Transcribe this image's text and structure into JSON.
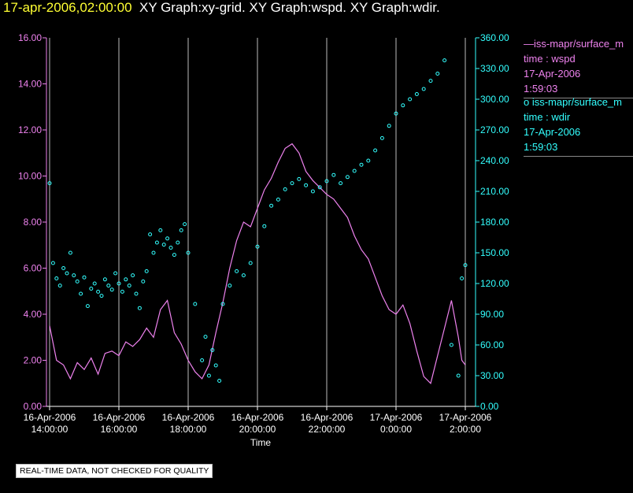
{
  "header": {
    "timestamp": "17-apr-2006,02:00:00",
    "graphs": "XY Graph:xy-grid.  XY Graph:wspd.  XY Graph:wdir."
  },
  "legend": [
    {
      "line1": "—iss-mapr/surface_m",
      "line2": "time : wspd",
      "line3": "17-Apr-2006",
      "line4": "1:59:03",
      "color": "#ee82ee"
    },
    {
      "line1": "o  iss-mapr/surface_m",
      "line2": "time : wdir",
      "line3": "17-Apr-2006",
      "line4": "1:59:03",
      "color": "#33ffff"
    }
  ],
  "footer": {
    "disclaimer": "REAL-TIME DATA, NOT CHECKED FOR QUALITY"
  },
  "chart_data": {
    "type": "line+scatter",
    "title": "",
    "xlabel": "Time",
    "x_range_hours": [
      14.0,
      26.0
    ],
    "x_ticks": [
      {
        "hour": 14,
        "date": "16-Apr-2006",
        "time": "14:00:00"
      },
      {
        "hour": 16,
        "date": "16-Apr-2006",
        "time": "16:00:00"
      },
      {
        "hour": 18,
        "date": "16-Apr-2006",
        "time": "18:00:00"
      },
      {
        "hour": 20,
        "date": "16-Apr-2006",
        "time": "20:00:00"
      },
      {
        "hour": 22,
        "date": "16-Apr-2006",
        "time": "22:00:00"
      },
      {
        "hour": 24,
        "date": "17-Apr-2006",
        "time": "0:00:00"
      },
      {
        "hour": 26,
        "date": "17-Apr-2006",
        "time": "2:00:00"
      }
    ],
    "y_left": {
      "label": "wspd",
      "range": [
        0,
        16
      ],
      "ticks": [
        "0.00",
        "2.00",
        "4.00",
        "6.00",
        "8.00",
        "10.00",
        "12.00",
        "14.00",
        "16.00"
      ],
      "color": "#ee82ee"
    },
    "y_right": {
      "label": "wdir",
      "range": [
        0,
        360
      ],
      "ticks": [
        "0.00",
        "30.00",
        "60.00",
        "90.00",
        "120.00",
        "150.00",
        "180.00",
        "210.00",
        "240.00",
        "270.00",
        "300.00",
        "330.00",
        "360.00"
      ],
      "color": "#33ffff"
    },
    "grid_x": true,
    "series": [
      {
        "name": "wspd",
        "style": "line",
        "axis": "left",
        "color": "#ee82ee",
        "points": [
          [
            14.0,
            3.5
          ],
          [
            14.2,
            2.0
          ],
          [
            14.4,
            1.8
          ],
          [
            14.6,
            1.2
          ],
          [
            14.8,
            1.9
          ],
          [
            15.0,
            1.6
          ],
          [
            15.2,
            2.1
          ],
          [
            15.4,
            1.4
          ],
          [
            15.6,
            2.3
          ],
          [
            15.8,
            2.4
          ],
          [
            16.0,
            2.2
          ],
          [
            16.2,
            2.8
          ],
          [
            16.4,
            2.6
          ],
          [
            16.6,
            2.9
          ],
          [
            16.8,
            3.4
          ],
          [
            17.0,
            3.0
          ],
          [
            17.2,
            4.2
          ],
          [
            17.4,
            4.6
          ],
          [
            17.6,
            3.2
          ],
          [
            17.8,
            2.7
          ],
          [
            18.0,
            2.0
          ],
          [
            18.2,
            1.5
          ],
          [
            18.4,
            1.2
          ],
          [
            18.6,
            1.8
          ],
          [
            18.8,
            3.2
          ],
          [
            19.0,
            4.5
          ],
          [
            19.2,
            6.0
          ],
          [
            19.4,
            7.2
          ],
          [
            19.6,
            8.0
          ],
          [
            19.8,
            7.8
          ],
          [
            20.0,
            8.6
          ],
          [
            20.2,
            9.4
          ],
          [
            20.4,
            9.9
          ],
          [
            20.6,
            10.6
          ],
          [
            20.8,
            11.2
          ],
          [
            21.0,
            11.4
          ],
          [
            21.2,
            11.0
          ],
          [
            21.4,
            10.2
          ],
          [
            21.6,
            9.8
          ],
          [
            21.8,
            9.5
          ],
          [
            22.0,
            9.2
          ],
          [
            22.2,
            9.0
          ],
          [
            22.4,
            8.6
          ],
          [
            22.6,
            8.2
          ],
          [
            22.8,
            7.4
          ],
          [
            23.0,
            6.8
          ],
          [
            23.2,
            6.4
          ],
          [
            23.4,
            5.6
          ],
          [
            23.6,
            4.8
          ],
          [
            23.8,
            4.2
          ],
          [
            24.0,
            4.0
          ],
          [
            24.2,
            4.4
          ],
          [
            24.4,
            3.6
          ],
          [
            24.6,
            2.4
          ],
          [
            24.8,
            1.3
          ],
          [
            25.0,
            1.0
          ],
          [
            25.2,
            2.2
          ],
          [
            25.4,
            3.4
          ],
          [
            25.6,
            4.6
          ],
          [
            25.8,
            3.0
          ],
          [
            25.9,
            2.0
          ],
          [
            26.0,
            1.8
          ]
        ]
      },
      {
        "name": "wdir",
        "style": "scatter",
        "axis": "right",
        "color": "#33ffff",
        "points": [
          [
            14.0,
            218
          ],
          [
            14.1,
            140
          ],
          [
            14.2,
            125
          ],
          [
            14.3,
            118
          ],
          [
            14.4,
            135
          ],
          [
            14.5,
            130
          ],
          [
            14.6,
            150
          ],
          [
            14.7,
            128
          ],
          [
            14.8,
            122
          ],
          [
            14.9,
            110
          ],
          [
            15.0,
            126
          ],
          [
            15.1,
            98
          ],
          [
            15.2,
            115
          ],
          [
            15.3,
            120
          ],
          [
            15.4,
            112
          ],
          [
            15.5,
            108
          ],
          [
            15.6,
            124
          ],
          [
            15.7,
            118
          ],
          [
            15.8,
            114
          ],
          [
            15.9,
            130
          ],
          [
            16.0,
            120
          ],
          [
            16.1,
            112
          ],
          [
            16.2,
            124
          ],
          [
            16.3,
            118
          ],
          [
            16.4,
            128
          ],
          [
            16.5,
            110
          ],
          [
            16.6,
            96
          ],
          [
            16.7,
            122
          ],
          [
            16.8,
            132
          ],
          [
            16.9,
            168
          ],
          [
            17.0,
            150
          ],
          [
            17.1,
            160
          ],
          [
            17.2,
            172
          ],
          [
            17.3,
            158
          ],
          [
            17.4,
            164
          ],
          [
            17.5,
            155
          ],
          [
            17.6,
            148
          ],
          [
            17.7,
            160
          ],
          [
            17.8,
            172
          ],
          [
            17.9,
            178
          ],
          [
            18.0,
            150
          ],
          [
            18.2,
            100
          ],
          [
            18.4,
            45
          ],
          [
            18.5,
            68
          ],
          [
            18.6,
            30
          ],
          [
            18.7,
            55
          ],
          [
            18.8,
            40
          ],
          [
            18.9,
            25
          ],
          [
            19.0,
            100
          ],
          [
            19.2,
            118
          ],
          [
            19.4,
            132
          ],
          [
            19.6,
            128
          ],
          [
            19.8,
            140
          ],
          [
            20.0,
            156
          ],
          [
            20.2,
            176
          ],
          [
            20.4,
            196
          ],
          [
            20.6,
            202
          ],
          [
            20.8,
            212
          ],
          [
            21.0,
            218
          ],
          [
            21.2,
            222
          ],
          [
            21.4,
            216
          ],
          [
            21.6,
            210
          ],
          [
            21.8,
            214
          ],
          [
            22.0,
            220
          ],
          [
            22.2,
            226
          ],
          [
            22.4,
            218
          ],
          [
            22.6,
            224
          ],
          [
            22.8,
            230
          ],
          [
            23.0,
            236
          ],
          [
            23.2,
            240
          ],
          [
            23.4,
            250
          ],
          [
            23.6,
            262
          ],
          [
            23.8,
            274
          ],
          [
            24.0,
            286
          ],
          [
            24.2,
            294
          ],
          [
            24.4,
            300
          ],
          [
            24.6,
            305
          ],
          [
            24.8,
            310
          ],
          [
            25.0,
            318
          ],
          [
            25.2,
            325
          ],
          [
            25.4,
            338
          ],
          [
            25.6,
            60
          ],
          [
            25.8,
            30
          ],
          [
            25.9,
            125
          ],
          [
            26.0,
            138
          ]
        ]
      }
    ]
  }
}
